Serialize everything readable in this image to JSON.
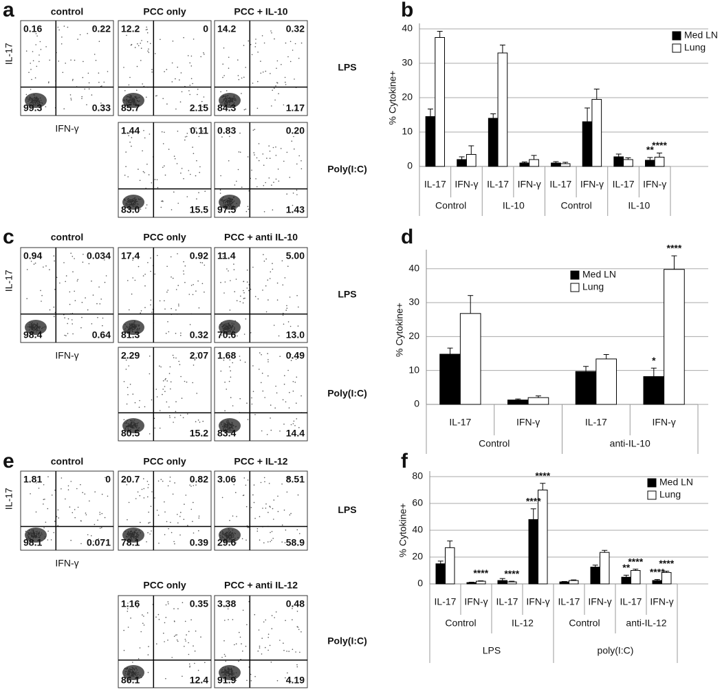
{
  "flow_panels": [
    {
      "letter": "a",
      "columns": [
        "control",
        "PCC only",
        "PCC + IL-10"
      ],
      "y_label": "IL-17",
      "x_label": "IFN-γ",
      "rows": [
        {
          "label": "LPS",
          "plots": [
            {
              "quadrants": [
                "0.16",
                "0.22",
                "99.3",
                "0.33"
              ]
            },
            {
              "quadrants": [
                "12.2",
                "0",
                "85.7",
                "2.15"
              ]
            },
            {
              "quadrants": [
                "14.2",
                "0.32",
                "84.3",
                "1.17"
              ]
            }
          ]
        },
        {
          "label": "Poly(I:C)",
          "plots": [
            null,
            {
              "quadrants": [
                "1.44",
                "0.11",
                "83.0",
                "15.5"
              ]
            },
            {
              "quadrants": [
                "0.83",
                "0.20",
                "97.5",
                "1.43"
              ]
            }
          ]
        }
      ]
    },
    {
      "letter": "c",
      "columns": [
        "control",
        "PCC only",
        "PCC + anti IL-10"
      ],
      "y_label": "IL-17",
      "x_label": "IFN-γ",
      "rows": [
        {
          "label": "LPS",
          "plots": [
            {
              "quadrants": [
                "0.94",
                "0.034",
                "98.4",
                "0.64"
              ]
            },
            {
              "quadrants": [
                "17.4",
                "0.92",
                "81.3",
                "0.32"
              ]
            },
            {
              "quadrants": [
                "11.4",
                "5.00",
                "70.6",
                "13.0"
              ]
            }
          ]
        },
        {
          "label": "Poly(I:C)",
          "plots": [
            null,
            {
              "quadrants": [
                "2.29",
                "2.07",
                "80.5",
                "15.2"
              ]
            },
            {
              "quadrants": [
                "1.68",
                "0.49",
                "83.4",
                "14.4"
              ]
            }
          ]
        }
      ]
    },
    {
      "letter": "e",
      "columns": [
        "control",
        "PCC only",
        "PCC + IL-12"
      ],
      "y_label": "IL-17",
      "x_label": "IFN-γ",
      "rows": [
        {
          "label": "LPS",
          "plots": [
            {
              "quadrants": [
                "1.81",
                "0",
                "98.1",
                "0.071"
              ]
            },
            {
              "quadrants": [
                "20.7",
                "0.82",
                "78.1",
                "0.39"
              ]
            },
            {
              "quadrants": [
                "3.06",
                "8.51",
                "29.6",
                "58.9"
              ]
            }
          ]
        },
        {
          "label": "Poly(I:C)",
          "plots": [
            null,
            {
              "header": "PCC only",
              "quadrants": [
                "1.16",
                "0.35",
                "86.1",
                "12.4"
              ]
            },
            {
              "header": "PCC + anti IL-12",
              "quadrants": [
                "3.38",
                "0.48",
                "91.9",
                "4.19"
              ]
            }
          ]
        }
      ]
    }
  ],
  "chart_data": [
    {
      "type": "bar",
      "panel": "b",
      "y_label": "% Cytokine+",
      "ylim": [
        0,
        40
      ],
      "yticks": [
        0,
        10,
        20,
        30,
        40
      ],
      "grid": true,
      "legend": "upper right",
      "categories": [
        "IL-17",
        "IFN-γ",
        "IL-17",
        "IFN-γ",
        "IL-17",
        "IFN-γ",
        "IL-17",
        "IFN-γ"
      ],
      "groups": [
        "Control",
        "IL-10",
        "Control",
        "IL-10"
      ],
      "series": [
        {
          "name": "Med LN",
          "color": "#000000",
          "values": [
            14.5,
            2.0,
            14.0,
            1.0,
            1.0,
            13.0,
            2.8,
            1.8
          ],
          "errors": [
            2.2,
            0.8,
            1.3,
            0.3,
            0.4,
            4.0,
            0.8,
            0.8
          ]
        },
        {
          "name": "Lung",
          "color": "#ffffff",
          "values": [
            37.5,
            3.5,
            33.0,
            2.0,
            0.8,
            19.5,
            2.0,
            2.7
          ],
          "errors": [
            1.8,
            2.5,
            2.3,
            1.2,
            0.4,
            3.0,
            0.5,
            1.2
          ]
        }
      ],
      "annotations": [
        {
          "text": "**",
          "category": 7,
          "series": 0
        },
        {
          "text": "****",
          "category": 7,
          "series": 1
        }
      ]
    },
    {
      "type": "bar",
      "panel": "d",
      "y_label": "% Cytokine+",
      "ylim": [
        0,
        44
      ],
      "yticks": [
        0,
        10,
        20,
        30,
        40
      ],
      "grid": true,
      "legend": "upper center",
      "categories": [
        "IL-17",
        "IFN-γ",
        "IL-17",
        "IFN-γ"
      ],
      "groups": [
        "Control",
        "anti-IL-10"
      ],
      "series": [
        {
          "name": "Med LN",
          "color": "#000000",
          "values": [
            14.8,
            1.3,
            9.7,
            8.2
          ],
          "errors": [
            1.8,
            0.3,
            1.5,
            2.5
          ]
        },
        {
          "name": "Lung",
          "color": "#ffffff",
          "values": [
            26.8,
            2.0,
            13.4,
            39.8
          ],
          "errors": [
            5.3,
            0.5,
            1.3,
            4.0
          ]
        }
      ],
      "annotations": [
        {
          "text": "*",
          "category": 3,
          "series": 0
        },
        {
          "text": "****",
          "category": 3,
          "series": 1
        }
      ]
    },
    {
      "type": "bar",
      "panel": "f",
      "y_label": "% Cytokine+",
      "ylim": [
        0,
        80
      ],
      "yticks": [
        0,
        20,
        40,
        60,
        80
      ],
      "grid": true,
      "legend": "upper right",
      "categories": [
        "IL-17",
        "IFN-γ",
        "IL-17",
        "IFN-γ",
        "IL-17",
        "IFN-γ",
        "IL-17",
        "IFN-γ"
      ],
      "groups": [
        "Control",
        "IL-12",
        "Control",
        "anti-IL-12"
      ],
      "supergroups": [
        "LPS",
        "poly(I:C)"
      ],
      "series": [
        {
          "name": "Med LN",
          "color": "#000000",
          "values": [
            15,
            1,
            2.5,
            48,
            1.5,
            12.5,
            5,
            2.5
          ],
          "errors": [
            2,
            0.3,
            1.5,
            8,
            0.3,
            1.5,
            1.5,
            0.8
          ]
        },
        {
          "name": "Lung",
          "color": "#ffffff",
          "values": [
            27,
            2,
            1.5,
            70,
            2.5,
            23.5,
            10,
            8.5
          ],
          "errors": [
            5,
            0.3,
            0.5,
            5,
            0.5,
            1.5,
            1,
            1
          ]
        }
      ],
      "annotations": [
        {
          "text": "****",
          "category": 1,
          "series": 1
        },
        {
          "text": "****",
          "category": 2,
          "series": 1
        },
        {
          "text": "****",
          "category": 3,
          "series": 0
        },
        {
          "text": "****",
          "category": 3,
          "series": 1
        },
        {
          "text": "**",
          "category": 6,
          "series": 0
        },
        {
          "text": "****",
          "category": 6,
          "series": 1
        },
        {
          "text": "****",
          "category": 7,
          "series": 0
        },
        {
          "text": "****",
          "category": 7,
          "series": 1
        }
      ]
    }
  ]
}
